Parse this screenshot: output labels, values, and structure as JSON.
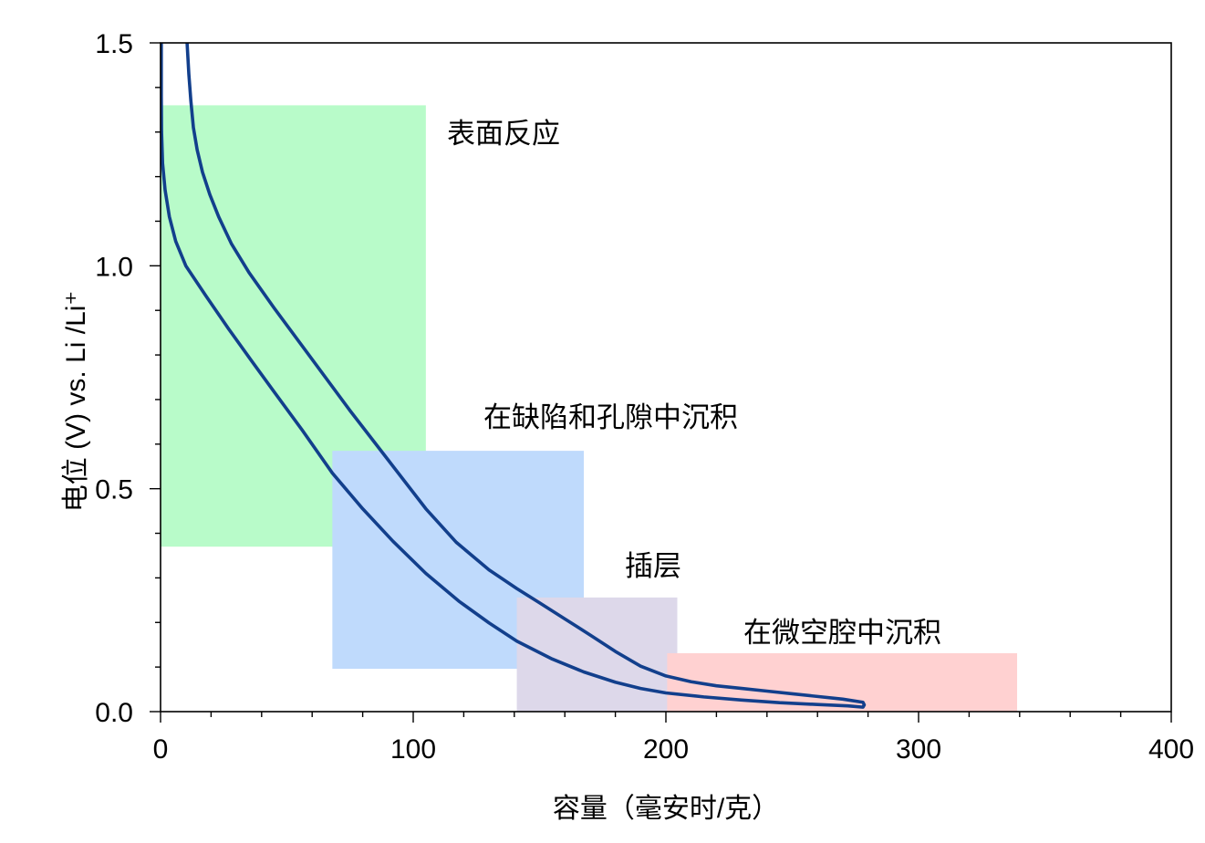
{
  "chart_data": {
    "type": "line",
    "xlabel": "容量（毫安时/克）",
    "ylabel": "电位 (V) vs. Li /Li⁺",
    "xlim": [
      0,
      400
    ],
    "ylim": [
      0,
      1.5
    ],
    "xticks": [
      0,
      100,
      200,
      300,
      400
    ],
    "xtick_labels": [
      "0",
      "100",
      "200",
      "300",
      "400"
    ],
    "yticks": [
      0,
      0.5,
      1.0,
      1.5
    ],
    "ytick_labels": [
      "0.0",
      "0.5",
      "1.0",
      "1.5"
    ],
    "x_minor_step": 20,
    "y_minor_step": 0.1,
    "grid": false,
    "legend": "none",
    "regions": [
      {
        "label": "表面反应",
        "x": [
          0,
          105
        ],
        "y": [
          0.37,
          1.36
        ],
        "color": "#b8fbc9"
      },
      {
        "label": "在缺陷和孔隙中沉积",
        "x": [
          68,
          167.5
        ],
        "y": [
          0.096,
          0.585
        ],
        "color": "#bfdafc"
      },
      {
        "label": "插层",
        "x": [
          141,
          204.5
        ],
        "y": [
          0,
          0.256
        ],
        "color": "#ddd8ea"
      },
      {
        "label": "在微空腔中沉积",
        "x": [
          200.5,
          339
        ],
        "y": [
          0,
          0.131
        ],
        "color": "#ffd1d1"
      }
    ],
    "series": [
      {
        "color": "#123f8c",
        "x": [
          0.3,
          0.3,
          0.4,
          0.8,
          1.8,
          3.5,
          6,
          10,
          18,
          27,
          36,
          45,
          56,
          68,
          80,
          92,
          105,
          118,
          130,
          141,
          155,
          167.5,
          180,
          190,
          200,
          215,
          230,
          245,
          260,
          272,
          278,
          278.5,
          278,
          270,
          260,
          250,
          240,
          230,
          220,
          210,
          200,
          190,
          180,
          170,
          160,
          150,
          141,
          130,
          117,
          105,
          90,
          75,
          60,
          45,
          35,
          28,
          23,
          19.5,
          16.6,
          14.5,
          13.0,
          12.0,
          11.2,
          10.5
        ],
        "y": [
          1.5,
          1.38,
          1.3,
          1.23,
          1.17,
          1.11,
          1.055,
          1.0,
          0.932,
          0.858,
          0.787,
          0.717,
          0.632,
          0.535,
          0.455,
          0.382,
          0.31,
          0.248,
          0.199,
          0.158,
          0.118,
          0.089,
          0.066,
          0.052,
          0.042,
          0.033,
          0.026,
          0.02,
          0.016,
          0.013,
          0.01,
          0.015,
          0.021,
          0.028,
          0.034,
          0.04,
          0.046,
          0.052,
          0.058,
          0.067,
          0.08,
          0.102,
          0.135,
          0.172,
          0.208,
          0.244,
          0.276,
          0.318,
          0.38,
          0.455,
          0.565,
          0.675,
          0.79,
          0.905,
          0.985,
          1.05,
          1.11,
          1.16,
          1.21,
          1.26,
          1.31,
          1.37,
          1.43,
          1.5
        ]
      }
    ]
  }
}
